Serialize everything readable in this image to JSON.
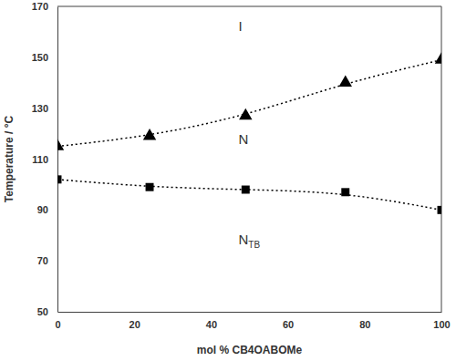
{
  "chart_data": {
    "type": "scatter",
    "x_label": "mol % CB4OABOMe",
    "y_label": "Temperature / °C",
    "x": [
      0,
      24,
      49,
      75,
      100
    ],
    "series": [
      {
        "color": "#000000",
        "marker": "triangle",
        "line_style": "dotted",
        "values": [
          115,
          119,
          127,
          140,
          149
        ]
      },
      {
        "color": "#000000",
        "marker": "square",
        "line_style": "dotted",
        "values": [
          102,
          99,
          98,
          97,
          90
        ]
      }
    ],
    "annotations": [
      {
        "text": "I"
      },
      {
        "text": "N"
      },
      {
        "text": "N",
        "subscript": "TB"
      }
    ],
    "xlim": [
      0,
      100
    ],
    "xticks": [
      0,
      20,
      40,
      60,
      80,
      100
    ],
    "ylim": [
      50,
      170
    ],
    "yticks": [
      50,
      70,
      90,
      110,
      130,
      150,
      170
    ],
    "grid": false
  }
}
